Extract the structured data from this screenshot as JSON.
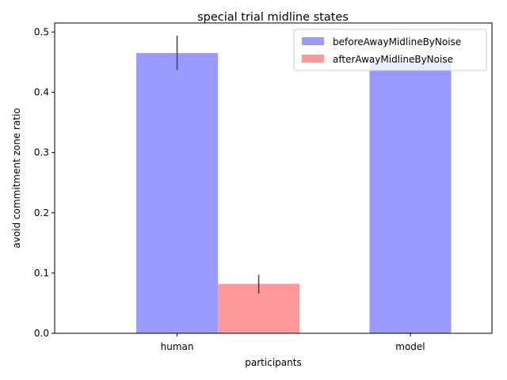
{
  "chart_data": {
    "type": "bar",
    "title": "special trial midline states",
    "xlabel": "participants",
    "ylabel": "avoid commitment zone ratio",
    "categories": [
      "human",
      "model"
    ],
    "ylim": [
      0,
      0.515
    ],
    "yticks": [
      0.0,
      0.1,
      0.2,
      0.3,
      0.4,
      0.5
    ],
    "ytick_labels": [
      "0.0",
      "0.1",
      "0.2",
      "0.3",
      "0.4",
      "0.5"
    ],
    "legend_position": "top-right",
    "grid": false,
    "series": [
      {
        "name": "beforeAwayMidlineByNoise",
        "color": "#9999ff",
        "values": [
          0.465,
          0.452
        ],
        "errors": [
          [
            0.437,
            0.494
          ],
          null
        ]
      },
      {
        "name": "afterAwayMidlineByNoise",
        "color": "#ff9999",
        "values": [
          0.082,
          0.0
        ],
        "errors": [
          [
            0.066,
            0.097
          ],
          null
        ]
      }
    ]
  }
}
